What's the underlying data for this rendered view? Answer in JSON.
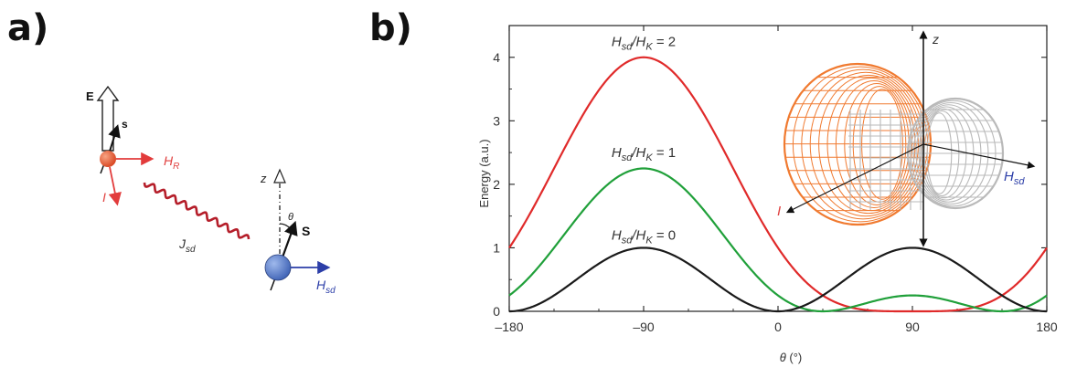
{
  "panel_labels": {
    "a": "a)",
    "b": "b)"
  },
  "schematic": {
    "labels": {
      "E": "E",
      "s": "s",
      "HR": "H",
      "HR_sub": "R",
      "I": "I",
      "Jsd": "J",
      "Jsd_sub": "sd",
      "z": "z",
      "theta": "θ",
      "S": "S",
      "Hsd": "H",
      "Hsd_sub": "sd"
    },
    "colors": {
      "red_sphere": "#e8562e",
      "blue_sphere": "#4f77c9",
      "red_arrow": "#e23b3b",
      "blue_arrow": "#2c3ea8",
      "wavy": "#b51e2a",
      "text_red": "#e0403f",
      "text_blue": "#2c3ea8"
    }
  },
  "chart_data": {
    "type": "line",
    "xlabel": "θ (°)",
    "ylabel": "Energy (a.u.)",
    "xlim": [
      -180,
      180
    ],
    "ylim": [
      0,
      4.5
    ],
    "xticks": [
      -180,
      -90,
      0,
      90,
      180
    ],
    "xtick_labels": [
      "–180",
      "–90",
      "0",
      "90",
      "180"
    ],
    "yticks": [
      0,
      1,
      2,
      3,
      4
    ],
    "ytick_labels": [
      "0",
      "1",
      "2",
      "3",
      "4"
    ],
    "grid": false,
    "series": [
      {
        "name": "H_sd/H_K = 2",
        "ratio": 2,
        "color": "#e02a2a"
      },
      {
        "name": "H_sd/H_K = 1",
        "ratio": 1,
        "color": "#20a03a"
      },
      {
        "name": "H_sd/H_K = 0",
        "ratio": 0,
        "color": "#1a1a1a"
      }
    ],
    "curve_labels": [
      {
        "text": "H",
        "sub1": "sd",
        "mid": "/H",
        "sub2": "K",
        "tail": " = 2",
        "x": -90,
        "y": 4.25
      },
      {
        "text": "H",
        "sub1": "sd",
        "mid": "/H",
        "sub2": "K",
        "tail": " = 1",
        "x": -90,
        "y": 2.5
      },
      {
        "text": "H",
        "sub1": "sd",
        "mid": "/H",
        "sub2": "K",
        "tail": " = 0",
        "x": -90,
        "y": 1.2
      }
    ],
    "inset": {
      "z": "z",
      "I": "I",
      "Hsd": "H",
      "Hsd_sub": "sd",
      "orange": "#f07a30",
      "grey": "#b9b9b9"
    }
  }
}
